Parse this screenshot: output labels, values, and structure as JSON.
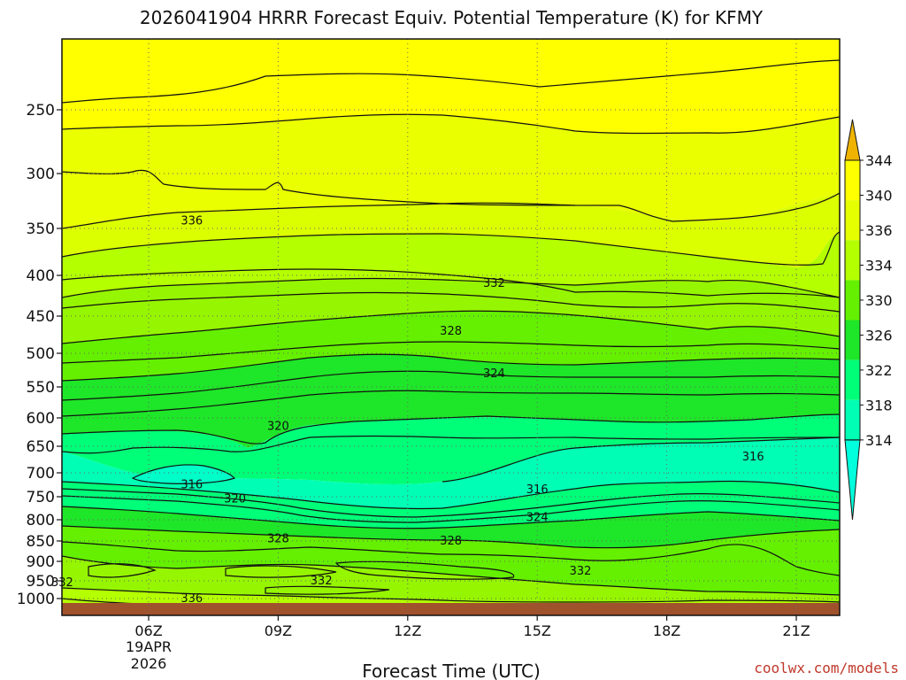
{
  "chart_data": {
    "type": "heatmap",
    "title": "2026041904 HRRR Forecast Equiv. Potential Temperature (K) for KFMY",
    "xlabel": "Forecast Time (UTC)",
    "ylabel": "",
    "x_ticks": [
      "06Z",
      "09Z",
      "12Z",
      "15Z",
      "18Z",
      "21Z"
    ],
    "x_date_label": [
      "19APR",
      "2026"
    ],
    "y_ticks": [
      250,
      300,
      350,
      400,
      450,
      500,
      550,
      600,
      650,
      700,
      750,
      800,
      850,
      900,
      950,
      1000
    ],
    "y_axis_scale": "pressure (decreasing upward)",
    "grid": "dotted",
    "colorbar": {
      "labels": [
        344,
        340,
        336,
        334,
        330,
        326,
        322,
        318,
        314
      ],
      "colors": [
        "#f0b400",
        "#ffff00",
        "#e6ff00",
        "#b4ff00",
        "#64f000",
        "#1ee628",
        "#00ff78",
        "#00ffb4",
        "#00ffdc"
      ],
      "extend": "both"
    },
    "contour_labels": [
      {
        "value": "336",
        "time": "07Z",
        "pressure": 343
      },
      {
        "value": "332",
        "time": "14Z",
        "pressure": 410
      },
      {
        "value": "328",
        "time": "13Z",
        "pressure": 470
      },
      {
        "value": "324",
        "time": "14Z",
        "pressure": 530
      },
      {
        "value": "320",
        "time": "09Z",
        "pressure": 615
      },
      {
        "value": "316",
        "time": "20Z",
        "pressure": 670
      },
      {
        "value": "316",
        "time": "07Z",
        "pressure": 725
      },
      {
        "value": "320",
        "time": "08Z",
        "pressure": 755
      },
      {
        "value": "316",
        "time": "15Z",
        "pressure": 735
      },
      {
        "value": "324",
        "time": "15Z",
        "pressure": 795
      },
      {
        "value": "328",
        "time": "09Z",
        "pressure": 845
      },
      {
        "value": "328",
        "time": "13Z",
        "pressure": 850
      },
      {
        "value": "332",
        "time": "16Z",
        "pressure": 925
      },
      {
        "value": "332",
        "time": "10Z",
        "pressure": 950
      },
      {
        "value": "332",
        "time": "04Z",
        "pressure": 955
      },
      {
        "value": "336",
        "time": "07Z",
        "pressure": 1000
      }
    ],
    "ground_color": "#a0522d"
  },
  "credit": "coolwx.com/models"
}
